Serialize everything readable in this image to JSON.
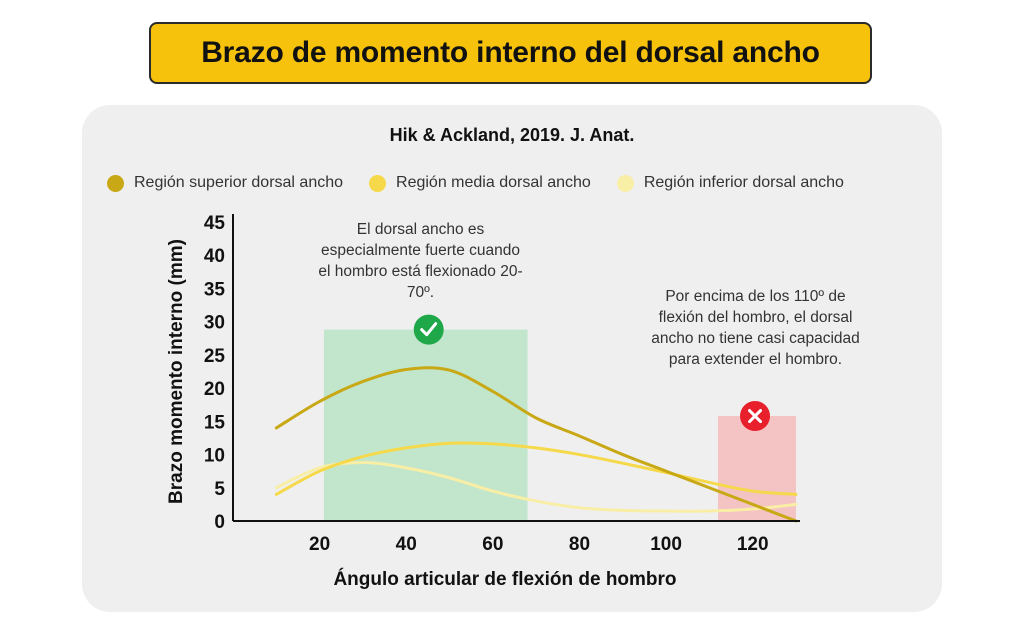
{
  "header": {
    "title": "Brazo de momento interno del dorsal ancho"
  },
  "chart_data": {
    "type": "line",
    "title": "Brazo de momento interno del dorsal ancho",
    "subtitle": "Hik & Ackland, 2019. J. Anat.",
    "xlabel": "Ángulo articular de flexión de hombro",
    "ylabel": "Brazo momento interno (mm)",
    "xlim": [
      0,
      130
    ],
    "ylim": [
      0,
      45
    ],
    "x_ticks": [
      20,
      40,
      60,
      80,
      100,
      120
    ],
    "y_ticks": [
      0,
      5,
      10,
      15,
      20,
      25,
      30,
      35,
      40,
      45
    ],
    "grid": false,
    "legend_position": "top",
    "series": [
      {
        "name": "Región superior dorsal ancho",
        "color": "#c8a815",
        "x": [
          10,
          20,
          30,
          40,
          50,
          60,
          70,
          80,
          90,
          100,
          110,
          120,
          130
        ],
        "y": [
          14,
          18,
          21,
          22.8,
          22.7,
          19.5,
          15.5,
          12.8,
          10,
          7.5,
          5,
          2.5,
          0
        ]
      },
      {
        "name": "Región media dorsal ancho",
        "color": "#f6d94a",
        "x": [
          10,
          20,
          30,
          40,
          50,
          60,
          70,
          80,
          90,
          100,
          110,
          120,
          130
        ],
        "y": [
          4,
          7.5,
          9.7,
          11,
          11.7,
          11.6,
          11,
          10,
          8.7,
          7.3,
          5.8,
          4.5,
          4
        ]
      },
      {
        "name": "Región inferior dorsal ancho",
        "color": "#f9eea6",
        "x": [
          10,
          20,
          30,
          40,
          50,
          60,
          70,
          80,
          90,
          100,
          110,
          120,
          130
        ],
        "y": [
          5,
          8,
          8.8,
          8,
          6.5,
          4.5,
          3,
          2,
          1.6,
          1.5,
          1.5,
          1.8,
          2.5
        ]
      }
    ],
    "regions": [
      {
        "x_range": [
          21,
          68
        ],
        "y_top": 28.8,
        "color": "#c2e6cb",
        "status": "good"
      },
      {
        "x_range": [
          112,
          130
        ],
        "y_top": 15.8,
        "color": "#f4c3c3",
        "status": "bad"
      }
    ],
    "annotations": [
      {
        "text": "El dorsal ancho es especialmente fuerte cuando el hombro está flexionado 20-70º."
      },
      {
        "text": "Por encima de los 110º de flexión del hombro, el dorsal ancho no tiene casi capacidad para extender el hombro."
      }
    ]
  }
}
